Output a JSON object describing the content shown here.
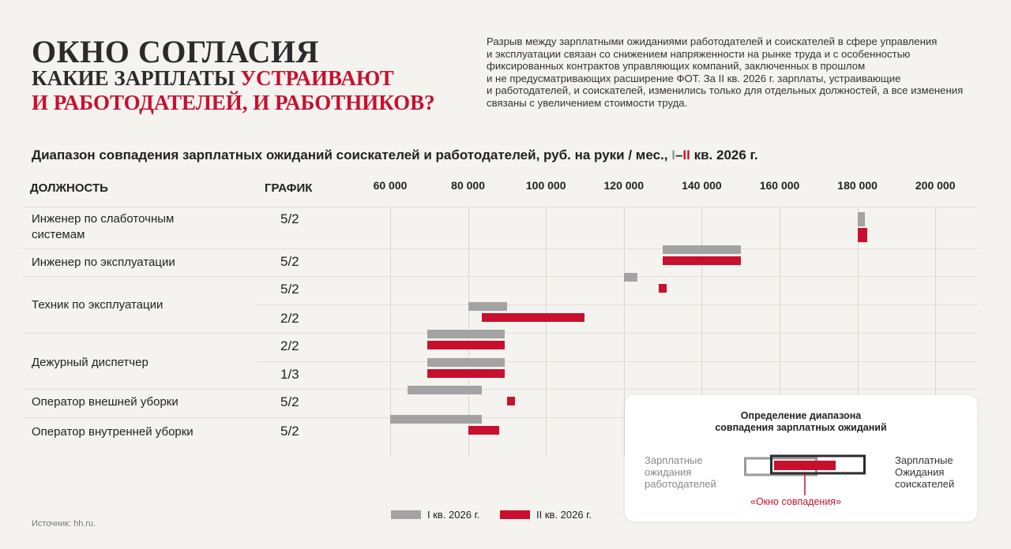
{
  "header": {
    "title_line1": "ОКНО СОГЛАСИЯ",
    "title_line2_a": "КАКИЕ ЗАРПЛАТЫ ",
    "title_line2_b": "УСТРАИВАЮТ",
    "title_line3": "И РАБОТОДАТЕЛЕЙ, И РАБОТНИКОВ?",
    "intro_lines": [
      "Разрыв между зарплатными ожиданиями работодателей и соискателей в сфере управления",
      "и эксплуатации связан со снижением напряженности на рынке труда и с особенностью",
      "фиксированных контрактов управляющих компаний, заключенных в прошлом",
      "и не предусматривающих расширение ФОТ. За II кв. 2026 г. зарплаты, устраивающие",
      "и работодателей, и соискателей, изменились только для отдельных должностей, а все изменения",
      "связаны с увеличением стоимости труда."
    ]
  },
  "chart_data": {
    "type": "bar",
    "subtype": "range",
    "title_prefix": "Диапазон совпадения зарплатных ожиданий соискателей и работодателей, руб. на руки / мес., ",
    "title_q1": "I",
    "title_dash": "–",
    "title_q2": "II",
    "title_suffix": " кв. 2026 г.",
    "col_position": "ДОЛЖНОСТЬ",
    "col_schedule": "ГРАФИК",
    "xlim": [
      40000,
      210000
    ],
    "xticks": [
      60000,
      80000,
      100000,
      120000,
      140000,
      160000,
      180000,
      200000
    ],
    "xtick_labels": [
      "60 000",
      "80 000",
      "100 000",
      "120 000",
      "140 000",
      "160 000",
      "180 000",
      "200 000"
    ],
    "grid": true,
    "colors": {
      "q1": "#a3a3a3",
      "q2": "#c8102e"
    },
    "positions": [
      {
        "name": "Инженер по слаботочным системам",
        "label_lines": [
          "Инженер по слаботочным",
          "системам"
        ]
      },
      {
        "name": "Инженер по эксплуатации",
        "label_lines": [
          "Инженер по эксплуатации"
        ]
      },
      {
        "name": "Техник по эксплуатации",
        "label_lines": [
          "Техник по эксплуатации"
        ]
      },
      {
        "name": "Дежурный диспетчер",
        "label_lines": [
          "Дежурный диспетчер"
        ]
      },
      {
        "name": "Оператор внешней уборки",
        "label_lines": [
          "Оператор внешней уборки"
        ]
      },
      {
        "name": "Оператор внутренней уборки",
        "label_lines": [
          "Оператор внутренней уборки"
        ]
      }
    ],
    "rows": [
      {
        "position": "Инженер по слаботочным системам",
        "schedule": "5/2",
        "q1": [
          180000,
          182000
        ],
        "q2": [
          180000,
          182500
        ]
      },
      {
        "position": "Инженер по эксплуатации",
        "schedule": "5/2",
        "q1": [
          130000,
          150000
        ],
        "q2": [
          130000,
          150000
        ]
      },
      {
        "position": "Техник по эксплуатации",
        "schedule": "5/2",
        "q1": [
          120000,
          123500
        ],
        "q2": [
          129000,
          131000
        ]
      },
      {
        "position": "Техник по эксплуатации",
        "schedule": "2/2",
        "q1": [
          80000,
          90000
        ],
        "q2": [
          83500,
          110000
        ]
      },
      {
        "position": "Дежурный диспетчер",
        "schedule": "2/2",
        "q1": [
          69500,
          89500
        ],
        "q2": [
          69500,
          89500
        ]
      },
      {
        "position": "Дежурный диспетчер",
        "schedule": "1/3",
        "q1": [
          69500,
          89500
        ],
        "q2": [
          69500,
          89500
        ]
      },
      {
        "position": "Оператор внешней уборки",
        "schedule": "5/2",
        "q1": [
          64500,
          83500
        ],
        "q2": [
          90000,
          92000
        ]
      },
      {
        "position": "Оператор внутренней уборки",
        "schedule": "5/2",
        "q1": [
          60000,
          83500
        ],
        "q2": [
          80000,
          88000
        ]
      }
    ],
    "legend": {
      "q1": "I кв. 2026 г.",
      "q2": "II кв. 2026 г.",
      "placement": "bottom"
    },
    "source": "Источник: hh.ru."
  },
  "explainer": {
    "title_line1": "Определение диапазона",
    "title_line2": "совпадения зарплатных ожиданий",
    "left_lines": [
      "Зарплатные",
      "ожидания",
      "работодателей"
    ],
    "right_lines": [
      "Зарплатные",
      "Ожидания",
      "соискателей"
    ],
    "window_label": "«Окно совпадения»",
    "colors": {
      "employer": "#9a9a9a",
      "seeker": "#2b2b2b",
      "window": "#c8102e"
    }
  }
}
